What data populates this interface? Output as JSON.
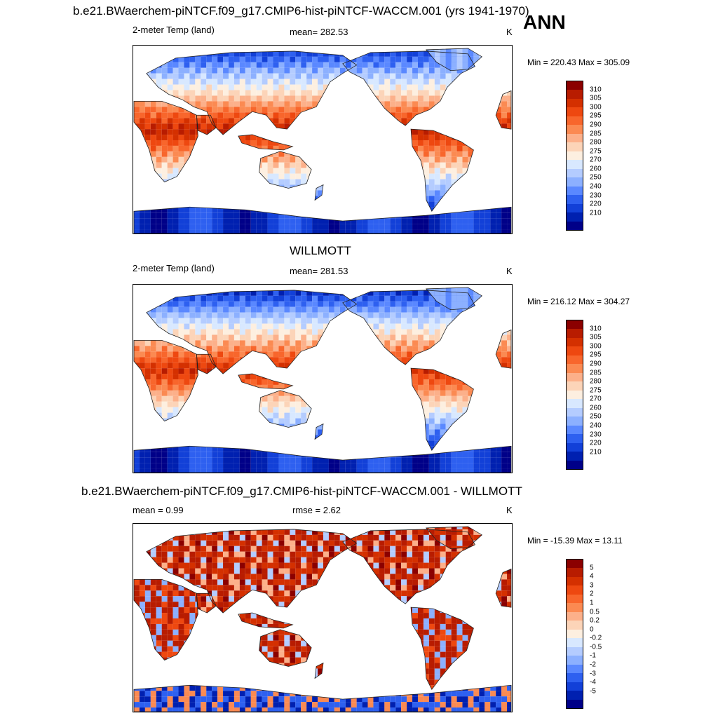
{
  "panels": [
    {
      "title": "b.e21.BWaerchem-piNTCF.f09_g17.CMIP6-hist-piNTCF-WACCM.001 (yrs 1941-1970)",
      "variable": "2-meter Temp (land)",
      "stat": "mean= 282.53",
      "units": "K",
      "minmax": "Min = 220.43 Max = 305.09",
      "colorbar_key": "temp"
    },
    {
      "title": "WILLMOTT",
      "variable": "2-meter Temp (land)",
      "stat": "mean= 281.53",
      "units": "K",
      "minmax": "Min = 216.12 Max = 304.27",
      "colorbar_key": "temp"
    },
    {
      "title": "b.e21.BWaerchem-piNTCF.f09_g17.CMIP6-hist-piNTCF-WACCM.001 - WILLMOTT",
      "variable": "mean =   0.99",
      "stat": "rmse =   2.62",
      "units": "K",
      "minmax": "Min = -15.39 Max =  13.11",
      "colorbar_key": "diff"
    }
  ],
  "season": "ANN",
  "colorbars": {
    "temp": {
      "labels": [
        "310",
        "305",
        "300",
        "295",
        "290",
        "285",
        "280",
        "275",
        "270",
        "260",
        "250",
        "240",
        "230",
        "220",
        "210"
      ],
      "colors": [
        "#8b0000",
        "#b81c00",
        "#d43000",
        "#ee4810",
        "#f8662c",
        "#fb8a52",
        "#fcb08a",
        "#fcd4b8",
        "#fdefe0",
        "#d8e8ff",
        "#b4ccff",
        "#8cb0ff",
        "#5a88ff",
        "#2e60f0",
        "#1240d8",
        "#0020b0",
        "#000088"
      ]
    },
    "diff": {
      "labels": [
        "5",
        "4",
        "3",
        "2",
        "1",
        "0.5",
        "0.2",
        "0",
        "-0.2",
        "-0.5",
        "-1",
        "-2",
        "-3",
        "-4",
        "-5"
      ],
      "colors": [
        "#8b0000",
        "#b81c00",
        "#d43000",
        "#ee4810",
        "#f8662c",
        "#fb8a52",
        "#fcb08a",
        "#fcd4b8",
        "#fdefe0",
        "#d8e8ff",
        "#b4ccff",
        "#8cb0ff",
        "#5a88ff",
        "#2e60f0",
        "#1240d8",
        "#0020b0",
        "#000088"
      ]
    }
  }
}
